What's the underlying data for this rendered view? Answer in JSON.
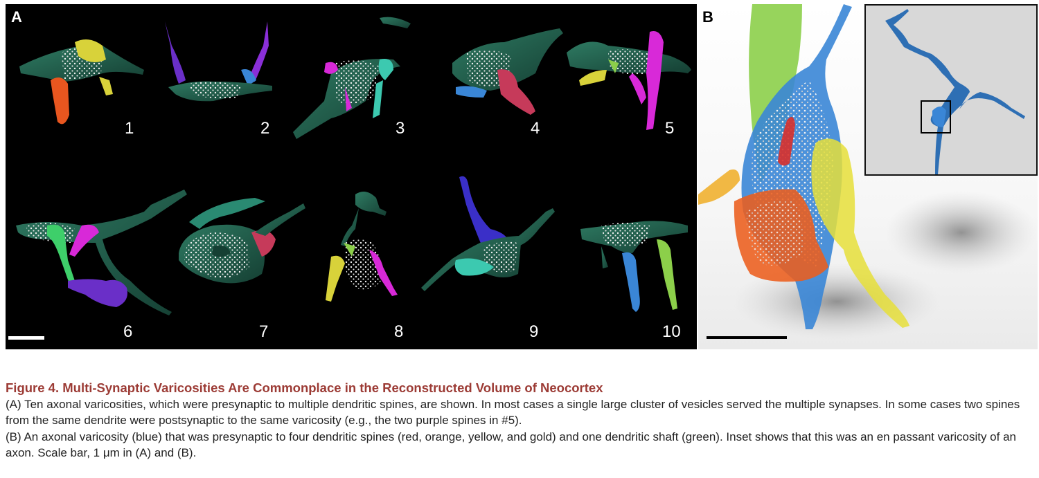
{
  "panel_a": {
    "letter": "A",
    "numbers": [
      "1",
      "2",
      "3",
      "4",
      "5",
      "6",
      "7",
      "8",
      "9",
      "10"
    ]
  },
  "panel_b": {
    "letter": "B"
  },
  "colors": {
    "axon": "#1f5c4a",
    "vesicles": "#f2f2f2",
    "orange": "#e8561f",
    "yellow": "#d8d23a",
    "purple": "#6a2fc8",
    "blue": "#3a86d6",
    "magenta": "#d829d8",
    "crimson": "#c63a5a",
    "aqua": "#3cc9b0",
    "green": "#8ccf4a",
    "caption_title": "#9c3b35"
  },
  "caption": {
    "title": "Figure 4.  Multi-Synaptic Varicosities Are Commonplace in the Reconstructed Volume of Neocortex",
    "paragraph_a": "(A) Ten axonal varicosities, which were presynaptic to multiple dendritic spines, are shown. In most cases a single large cluster of vesicles served the multiple synapses. In some cases two spines from the same dendrite were postsynaptic to the same varicosity (e.g., the two purple spines in #5).",
    "paragraph_b": "(B) An axonal varicosity (blue) that was presynaptic to four dendritic spines (red, orange, yellow, and gold) and one dendritic shaft (green). Inset shows that this was an en passant varicosity of an axon. Scale bar, 1 μm in (A) and (B)."
  }
}
